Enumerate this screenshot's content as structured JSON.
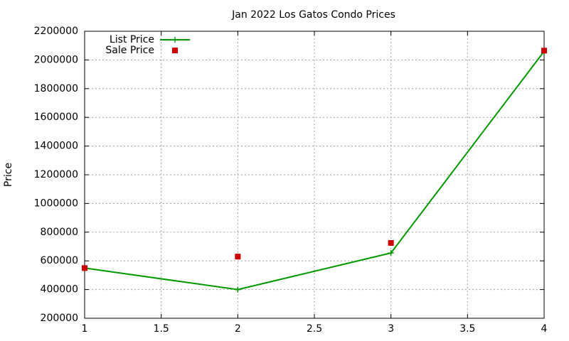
{
  "chart_data": {
    "type": "line",
    "title": "Jan 2022 Los Gatos Condo Prices",
    "y_label": "Price",
    "x": [
      1,
      2,
      3,
      4
    ],
    "series": [
      {
        "name": "List Price",
        "color": "#009900",
        "style": "linespoints",
        "values": [
          550000,
          400000,
          655000,
          2060000
        ]
      },
      {
        "name": "Sale Price",
        "color": "#cc0000",
        "style": "points",
        "values": [
          550000,
          630000,
          725000,
          2065000
        ]
      }
    ],
    "xlim": [
      1,
      4
    ],
    "xticks": [
      1,
      1.5,
      2,
      2.5,
      3,
      3.5,
      4
    ],
    "ylim": [
      200000,
      2200000
    ],
    "yticks": [
      200000,
      400000,
      600000,
      800000,
      1000000,
      1200000,
      1400000,
      1600000,
      1800000,
      2000000,
      2200000
    ],
    "grid": true,
    "legend": "top-left"
  }
}
